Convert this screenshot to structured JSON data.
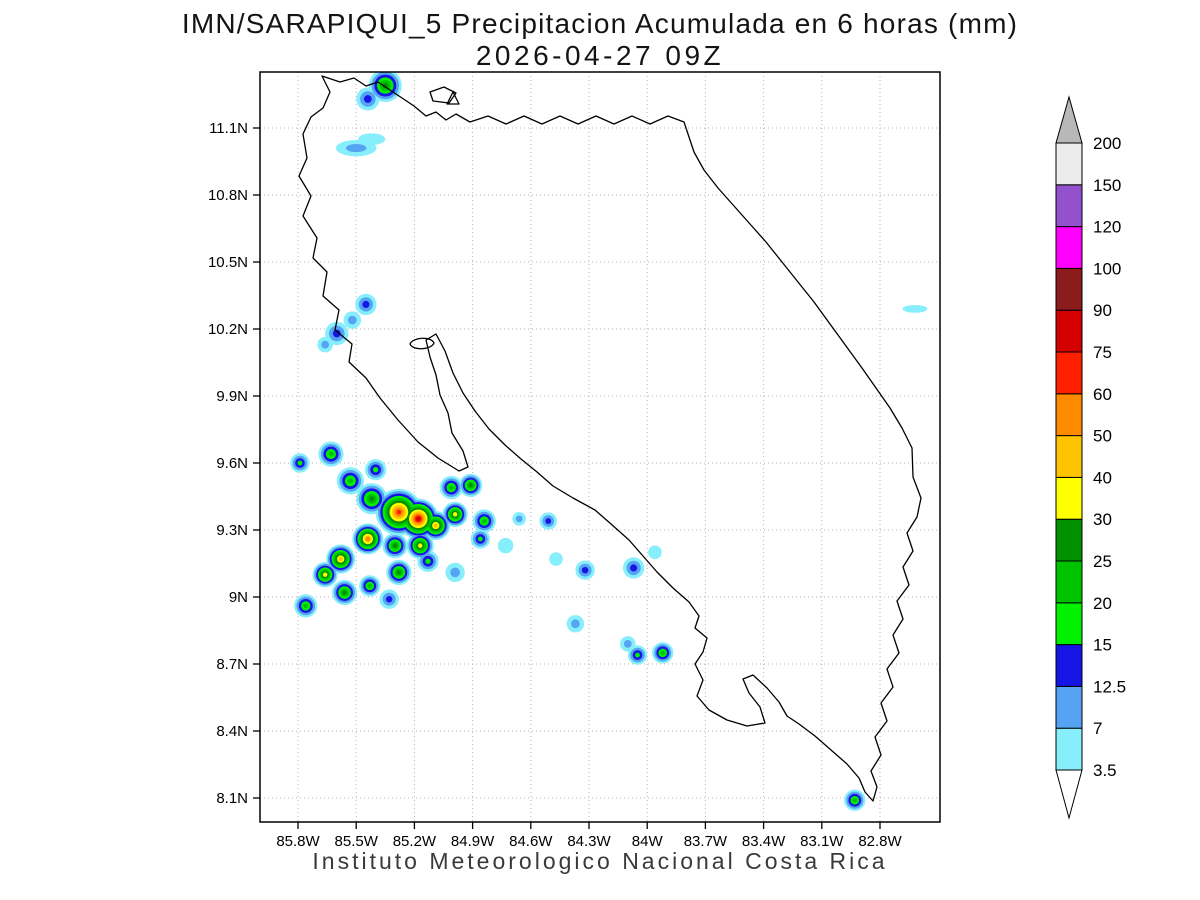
{
  "title": {
    "line1": "IMN/SARAPIQUI_5 Precipitacion Acumulada en 6 horas (mm)",
    "line2": "2026-04-27 09Z"
  },
  "footer": "Instituto Meteorologico Nacional Costa Rica",
  "chart_data": {
    "type": "heatmap",
    "subtype": "filled-contour precipitation map",
    "region": "Costa Rica",
    "title": "IMN/SARAPIQUI_5 Precipitacion Acumulada en 6 horas (mm)",
    "valid_time": "2026-04-27 09Z",
    "units": "mm",
    "grid": true,
    "lat_ticks": {
      "labels": [
        "11.1N",
        "10.8N",
        "10.5N",
        "10.2N",
        "9.9N",
        "9.6N",
        "9.3N",
        "9N",
        "8.7N",
        "8.4N",
        "8.1N"
      ],
      "values": [
        11.1,
        10.8,
        10.5,
        10.2,
        9.9,
        9.6,
        9.3,
        9.0,
        8.7,
        8.4,
        8.1
      ]
    },
    "lon_ticks": {
      "labels": [
        "85.8W",
        "85.5W",
        "85.2W",
        "84.9W",
        "84.6W",
        "84.3W",
        "84W",
        "83.7W",
        "83.4W",
        "83.1W",
        "82.8W"
      ],
      "values": [
        85.8,
        85.5,
        85.2,
        84.9,
        84.6,
        84.3,
        84.0,
        83.7,
        83.4,
        83.1,
        82.8
      ]
    },
    "colorbar": {
      "levels": [
        3.5,
        7,
        12.5,
        15,
        20,
        25,
        30,
        40,
        50,
        60,
        75,
        90,
        100,
        120,
        150,
        200
      ],
      "labels": [
        "3.5",
        "7",
        "12.5",
        "15",
        "20",
        "25",
        "30",
        "40",
        "50",
        "60",
        "75",
        "90",
        "100",
        "120",
        "150",
        "200"
      ],
      "colors": [
        "#87eefc",
        "#55a3f2",
        "#1515e6",
        "#00f000",
        "#00c300",
        "#009000",
        "#ffff00",
        "#ffc400",
        "#ff8c00",
        "#ff2000",
        "#d40000",
        "#8c1c1c",
        "#ff00ff",
        "#9351ce",
        "#ececec"
      ],
      "over_color": "#b8b8b8",
      "under_color": "#ffffff"
    },
    "precip_cells": [
      {
        "lon_w": 85.35,
        "lat": 11.29,
        "mm": 25,
        "r_deg": 0.085
      },
      {
        "lon_w": 85.44,
        "lat": 11.23,
        "mm": 12.5,
        "r_deg": 0.06
      },
      {
        "lon_w": 85.5,
        "lat": 11.01,
        "mm": 7,
        "r_deg": 0.07,
        "sx": 1.5,
        "sy": 0.6
      },
      {
        "lon_w": 85.42,
        "lat": 11.05,
        "mm": 3.5,
        "r_deg": 0.05,
        "sx": 1.4,
        "sy": 0.6
      },
      {
        "lon_w": 85.45,
        "lat": 10.31,
        "mm": 12.5,
        "r_deg": 0.055
      },
      {
        "lon_w": 85.52,
        "lat": 10.24,
        "mm": 7,
        "r_deg": 0.045
      },
      {
        "lon_w": 85.6,
        "lat": 10.18,
        "mm": 12.5,
        "r_deg": 0.06
      },
      {
        "lon_w": 85.66,
        "lat": 10.13,
        "mm": 7,
        "r_deg": 0.04
      },
      {
        "lon_w": 85.79,
        "lat": 9.6,
        "mm": 15,
        "r_deg": 0.05
      },
      {
        "lon_w": 85.63,
        "lat": 9.64,
        "mm": 20,
        "r_deg": 0.065
      },
      {
        "lon_w": 85.53,
        "lat": 9.52,
        "mm": 20,
        "r_deg": 0.07
      },
      {
        "lon_w": 85.4,
        "lat": 9.57,
        "mm": 15,
        "r_deg": 0.055
      },
      {
        "lon_w": 85.42,
        "lat": 9.44,
        "mm": 25,
        "r_deg": 0.08
      },
      {
        "lon_w": 85.28,
        "lat": 9.38,
        "mm": 60,
        "r_deg": 0.12
      },
      {
        "lon_w": 85.18,
        "lat": 9.35,
        "mm": 75,
        "r_deg": 0.105
      },
      {
        "lon_w": 85.09,
        "lat": 9.32,
        "mm": 40,
        "r_deg": 0.075
      },
      {
        "lon_w": 84.99,
        "lat": 9.37,
        "mm": 30,
        "r_deg": 0.065
      },
      {
        "lon_w": 85.01,
        "lat": 9.49,
        "mm": 20,
        "r_deg": 0.06
      },
      {
        "lon_w": 84.91,
        "lat": 9.5,
        "mm": 25,
        "r_deg": 0.06
      },
      {
        "lon_w": 84.84,
        "lat": 9.34,
        "mm": 20,
        "r_deg": 0.06
      },
      {
        "lon_w": 84.86,
        "lat": 9.26,
        "mm": 15,
        "r_deg": 0.05
      },
      {
        "lon_w": 85.17,
        "lat": 9.23,
        "mm": 30,
        "r_deg": 0.07
      },
      {
        "lon_w": 85.3,
        "lat": 9.23,
        "mm": 25,
        "r_deg": 0.065
      },
      {
        "lon_w": 85.44,
        "lat": 9.26,
        "mm": 50,
        "r_deg": 0.08
      },
      {
        "lon_w": 85.58,
        "lat": 9.17,
        "mm": 40,
        "r_deg": 0.075
      },
      {
        "lon_w": 85.66,
        "lat": 9.1,
        "mm": 30,
        "r_deg": 0.065
      },
      {
        "lon_w": 85.56,
        "lat": 9.02,
        "mm": 25,
        "r_deg": 0.065
      },
      {
        "lon_w": 85.43,
        "lat": 9.05,
        "mm": 20,
        "r_deg": 0.055
      },
      {
        "lon_w": 85.28,
        "lat": 9.11,
        "mm": 25,
        "r_deg": 0.065
      },
      {
        "lon_w": 85.13,
        "lat": 9.16,
        "mm": 15,
        "r_deg": 0.055
      },
      {
        "lon_w": 84.99,
        "lat": 9.11,
        "mm": 7,
        "r_deg": 0.05
      },
      {
        "lon_w": 85.76,
        "lat": 8.96,
        "mm": 20,
        "r_deg": 0.06
      },
      {
        "lon_w": 85.33,
        "lat": 8.99,
        "mm": 12.5,
        "r_deg": 0.05
      },
      {
        "lon_w": 84.73,
        "lat": 9.23,
        "mm": 3.5,
        "r_deg": 0.04
      },
      {
        "lon_w": 84.66,
        "lat": 9.35,
        "mm": 7,
        "r_deg": 0.035
      },
      {
        "lon_w": 84.51,
        "lat": 9.34,
        "mm": 12.5,
        "r_deg": 0.045
      },
      {
        "lon_w": 84.47,
        "lat": 9.17,
        "mm": 3.5,
        "r_deg": 0.035
      },
      {
        "lon_w": 84.32,
        "lat": 9.12,
        "mm": 12.5,
        "r_deg": 0.05
      },
      {
        "lon_w": 84.37,
        "lat": 8.88,
        "mm": 7,
        "r_deg": 0.045
      },
      {
        "lon_w": 84.07,
        "lat": 9.13,
        "mm": 12.5,
        "r_deg": 0.055
      },
      {
        "lon_w": 83.96,
        "lat": 9.2,
        "mm": 3.5,
        "r_deg": 0.035
      },
      {
        "lon_w": 84.1,
        "lat": 8.79,
        "mm": 7,
        "r_deg": 0.04
      },
      {
        "lon_w": 84.05,
        "lat": 8.74,
        "mm": 15,
        "r_deg": 0.05
      },
      {
        "lon_w": 83.92,
        "lat": 8.75,
        "mm": 20,
        "r_deg": 0.055
      },
      {
        "lon_w": 82.62,
        "lat": 10.29,
        "mm": 3.5,
        "r_deg": 0.04,
        "sx": 1.6,
        "sy": 0.5
      },
      {
        "lon_w": 82.93,
        "lat": 8.09,
        "mm": 20,
        "r_deg": 0.055
      }
    ]
  }
}
